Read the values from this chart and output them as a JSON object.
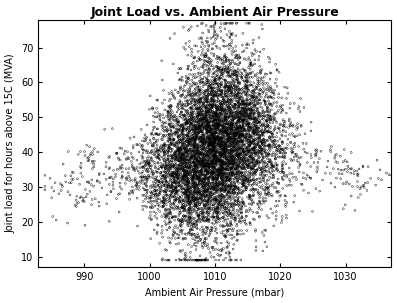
{
  "title": "Joint Load vs. Ambient Air Pressure",
  "xlabel": "Ambient Air Pressure (mbar)",
  "ylabel": "Joint load for hours above 15C (MVA)",
  "xlim": [
    983,
    1037
  ],
  "ylim": [
    7,
    78
  ],
  "xticks": [
    990,
    1000,
    1010,
    1020,
    1030
  ],
  "yticks": [
    10,
    20,
    30,
    40,
    50,
    60,
    70
  ],
  "point_color": "black",
  "point_size": 1.8,
  "marker": "o",
  "background_color": "white",
  "n_main": 8000,
  "seed": 42,
  "title_fontsize": 9,
  "label_fontsize": 7,
  "tick_fontsize": 7
}
